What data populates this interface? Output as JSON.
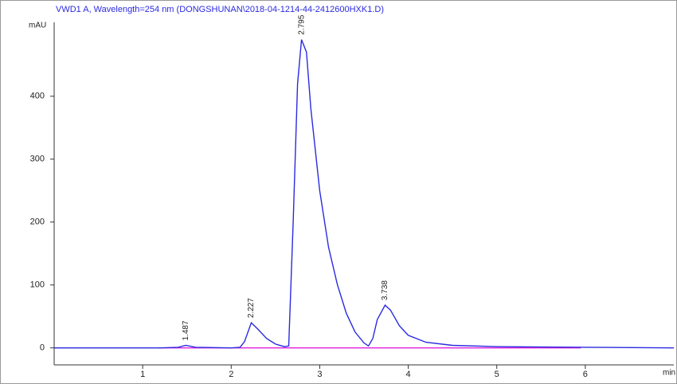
{
  "chart_data": {
    "type": "line",
    "title": "VWD1 A, Wavelength=254 nm (DONGSHUNAN\\2018-04-1214-44-2412600HXK1.D)",
    "y_label": "mAU",
    "x_label": "min",
    "xlim": [
      0,
      7
    ],
    "xticks": [
      1,
      2,
      3,
      4,
      5,
      6
    ],
    "ylim": [
      -27,
      515
    ],
    "yticks": [
      0,
      100,
      200,
      300,
      400
    ],
    "series": [
      {
        "color": "#2a2ae0",
        "x": [
          0,
          1.2,
          1.4,
          1.487,
          1.6,
          2.0,
          2.1,
          2.15,
          2.227,
          2.3,
          2.4,
          2.5,
          2.6,
          2.65,
          2.7,
          2.75,
          2.795,
          2.85,
          2.9,
          3.0,
          3.1,
          3.2,
          3.3,
          3.4,
          3.5,
          3.55,
          3.6,
          3.65,
          3.738,
          3.8,
          3.9,
          4.0,
          4.2,
          4.5,
          5.0,
          6.0,
          7.0
        ],
        "values": [
          0,
          0,
          1,
          4,
          1,
          0,
          1,
          10,
          40,
          30,
          15,
          6,
          2,
          3,
          200,
          420,
          490,
          470,
          380,
          250,
          160,
          100,
          55,
          25,
          8,
          3,
          15,
          45,
          68,
          60,
          35,
          20,
          9,
          4,
          2,
          1,
          0
        ]
      }
    ],
    "baseline": {
      "color": "#e020e0",
      "x": [
        1.18,
        5.95
      ],
      "values": [
        0,
        0
      ]
    },
    "peak_labels": [
      1.487,
      2.227,
      2.795,
      3.738
    ]
  }
}
